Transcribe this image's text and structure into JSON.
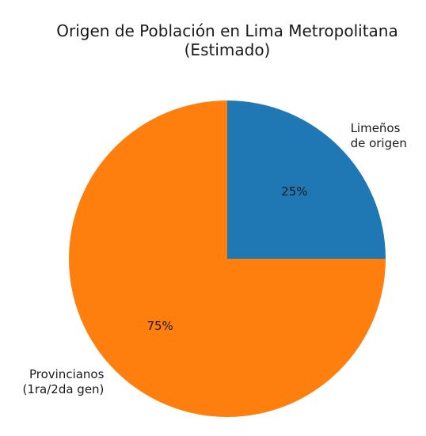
{
  "chart_data": {
    "type": "pie",
    "title_lines": [
      "Origen de Población en Lima Metropolitana",
      "(Estimado)"
    ],
    "slices": [
      {
        "label_lines": [
          "Limeños",
          "de origen"
        ],
        "value": 25,
        "pct_label": "25%",
        "color": "#1f77b4"
      },
      {
        "label_lines": [
          "Provincianos",
          "(1ra/2da gen)"
        ],
        "value": 75,
        "pct_label": "75%",
        "color": "#ff7f0e"
      }
    ],
    "start_angle": 90,
    "direction": "clockwise"
  }
}
